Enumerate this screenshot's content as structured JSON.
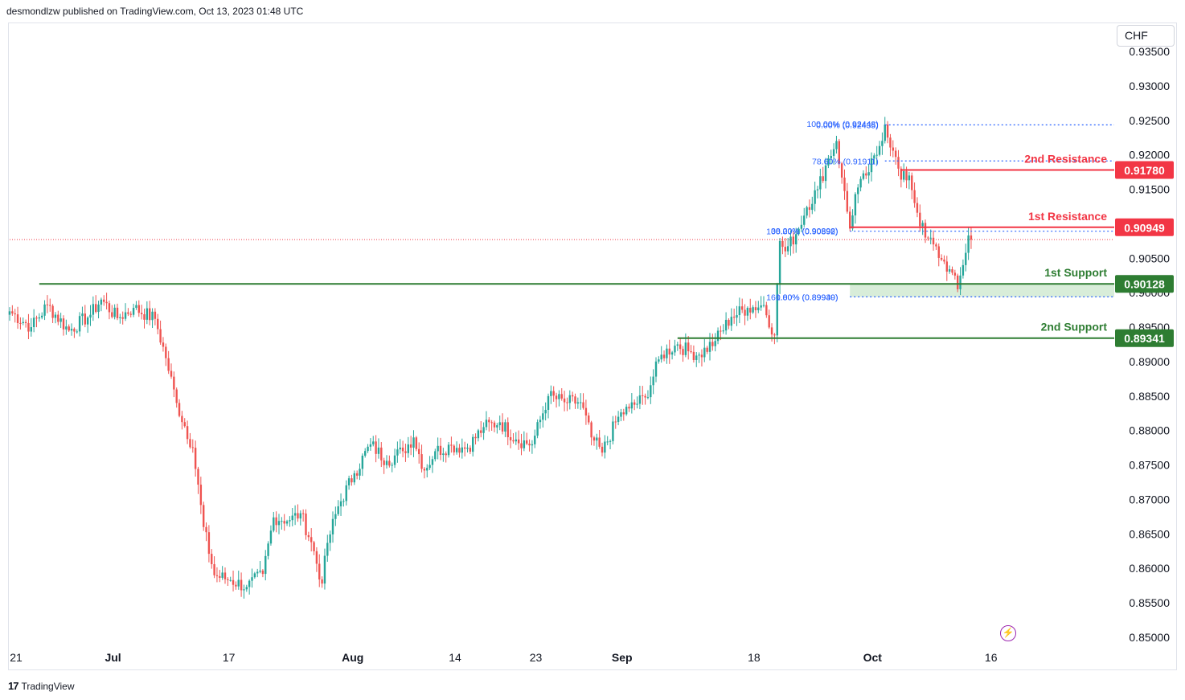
{
  "header": {
    "publisher_text": "desmondlzw published on TradingView.com, Oct 13, 2023 01:48 UTC"
  },
  "toolbar": {
    "currency": "CHF"
  },
  "footer": {
    "brand": "TradingView",
    "logo": "17"
  },
  "icons": {
    "flash": "lightning-icon"
  },
  "colors": {
    "up": "#26a69a",
    "down": "#ef5350",
    "support": "#2e7d32",
    "resistance": "#f23645",
    "fib": "#2962ff",
    "price_line": "#f23645"
  },
  "chart_data": {
    "type": "candlestick",
    "title": "",
    "y_axis": {
      "ylim": [
        0.8475,
        0.9365
      ],
      "ticks": [
        "0.93500",
        "0.93000",
        "0.92500",
        "0.92000",
        "0.91500",
        "0.91000",
        "0.90500",
        "0.90000",
        "0.89500",
        "0.89000",
        "0.88500",
        "0.88000",
        "0.87500",
        "0.87000",
        "0.86500",
        "0.86000",
        "0.85500",
        "0.85000"
      ],
      "tick_values": [
        0.935,
        0.93,
        0.925,
        0.92,
        0.915,
        0.91,
        0.905,
        0.9,
        0.895,
        0.89,
        0.885,
        0.88,
        0.875,
        0.87,
        0.865,
        0.86,
        0.855,
        0.85
      ]
    },
    "x_axis": {
      "labels": [
        "21",
        "Jul",
        "17",
        "Aug",
        "14",
        "23",
        "Sep",
        "18",
        "Oct",
        "16"
      ],
      "label_index": [
        0,
        36,
        79,
        125,
        163,
        193,
        225,
        274,
        318,
        362
      ]
    },
    "price_path": [
      [
        0,
        0.8973
      ],
      [
        8,
        0.895
      ],
      [
        14,
        0.8982
      ],
      [
        22,
        0.8945
      ],
      [
        30,
        0.8968
      ],
      [
        34,
        0.899
      ],
      [
        40,
        0.8963
      ],
      [
        46,
        0.8978
      ],
      [
        54,
        0.8962
      ],
      [
        58,
        0.8905
      ],
      [
        62,
        0.884
      ],
      [
        68,
        0.8775
      ],
      [
        72,
        0.866
      ],
      [
        76,
        0.859
      ],
      [
        82,
        0.8583
      ],
      [
        88,
        0.8573
      ],
      [
        94,
        0.8592
      ],
      [
        98,
        0.8674
      ],
      [
        104,
        0.867
      ],
      [
        108,
        0.868
      ],
      [
        112,
        0.8638
      ],
      [
        116,
        0.8578
      ],
      [
        118,
        0.8637
      ],
      [
        122,
        0.869
      ],
      [
        128,
        0.8738
      ],
      [
        134,
        0.878
      ],
      [
        140,
        0.8756
      ],
      [
        146,
        0.877
      ],
      [
        150,
        0.879
      ],
      [
        154,
        0.8742
      ],
      [
        158,
        0.877
      ],
      [
        164,
        0.8778
      ],
      [
        170,
        0.8775
      ],
      [
        176,
        0.8805
      ],
      [
        182,
        0.8812
      ],
      [
        188,
        0.8787
      ],
      [
        194,
        0.878
      ],
      [
        200,
        0.885
      ],
      [
        206,
        0.8841
      ],
      [
        212,
        0.8841
      ],
      [
        216,
        0.879
      ],
      [
        220,
        0.8768
      ],
      [
        226,
        0.882
      ],
      [
        230,
        0.8832
      ],
      [
        236,
        0.8848
      ],
      [
        242,
        0.891
      ],
      [
        248,
        0.8925
      ],
      [
        252,
        0.8915
      ],
      [
        256,
        0.891
      ],
      [
        262,
        0.893
      ],
      [
        268,
        0.8965
      ],
      [
        274,
        0.8978
      ],
      [
        280,
        0.8982
      ],
      [
        284,
        0.8938
      ],
      [
        286,
        0.9075
      ],
      [
        288,
        0.906
      ],
      [
        292,
        0.9085
      ],
      [
        296,
        0.9124
      ],
      [
        300,
        0.915
      ],
      [
        304,
        0.9195
      ],
      [
        307,
        0.922
      ],
      [
        309,
        0.9167
      ],
      [
        312,
        0.9093
      ],
      [
        314,
        0.9143
      ],
      [
        318,
        0.917
      ],
      [
        322,
        0.92
      ],
      [
        325,
        0.9244
      ],
      [
        328,
        0.9206
      ],
      [
        331,
        0.9164
      ],
      [
        334,
        0.917
      ],
      [
        337,
        0.9116
      ],
      [
        340,
        0.908
      ],
      [
        343,
        0.907
      ],
      [
        346,
        0.9048
      ],
      [
        349,
        0.9034
      ],
      [
        352,
        0.9005
      ],
      [
        354,
        0.904
      ],
      [
        356,
        0.9083
      ],
      [
        357,
        0.9077
      ]
    ],
    "price_line": 0.9077,
    "levels": [
      {
        "name": "2nd Resistance",
        "value": 0.9178,
        "value_text": "0.91780",
        "kind": "resistance"
      },
      {
        "name": "1st Resistance",
        "value": 0.90949,
        "value_text": "0.90949",
        "kind": "resistance"
      },
      {
        "name": "1st Support",
        "value": 0.90128,
        "value_text": "0.90128",
        "kind": "support"
      },
      {
        "name": "2nd Support",
        "value": 0.89341,
        "value_text": "0.89341",
        "kind": "support"
      }
    ],
    "fib_labels": [
      {
        "text": "100.00% (0.92448)",
        "value": 0.92448,
        "x_index": 325
      },
      {
        "text": "0.00% (0.92435)",
        "value": 0.92435,
        "x_index": 325
      },
      {
        "text": "78.60% (0.91911)",
        "value": 0.91911,
        "x_index": 325
      },
      {
        "text": "38.20% (0.90898)",
        "value": 0.90898,
        "x_index": 310
      },
      {
        "text": "100.00% (0.90892)",
        "value": 0.90892,
        "x_index": 310
      },
      {
        "text": "0.00% (0.89940)",
        "value": 0.8994,
        "x_index": 310
      },
      {
        "text": "161.80% (0.89939)",
        "value": 0.89939,
        "x_index": 310
      }
    ],
    "fib_lines": [
      {
        "value": 0.92435,
        "from_index": 325
      },
      {
        "value": 0.91911,
        "from_index": 325
      },
      {
        "value": 0.90892,
        "from_index": 312
      },
      {
        "value": 0.89939,
        "from_index": 312
      }
    ],
    "support_lines": [
      {
        "value": 0.90128,
        "from_index": 11
      },
      {
        "value": 0.89341,
        "from_index": 248
      }
    ],
    "resistance_lines": [
      {
        "value": 0.9178,
        "from_index": 331
      },
      {
        "value": 0.90949,
        "from_index": 312
      }
    ],
    "support_zone": [
      0.8994,
      0.90128
    ]
  }
}
